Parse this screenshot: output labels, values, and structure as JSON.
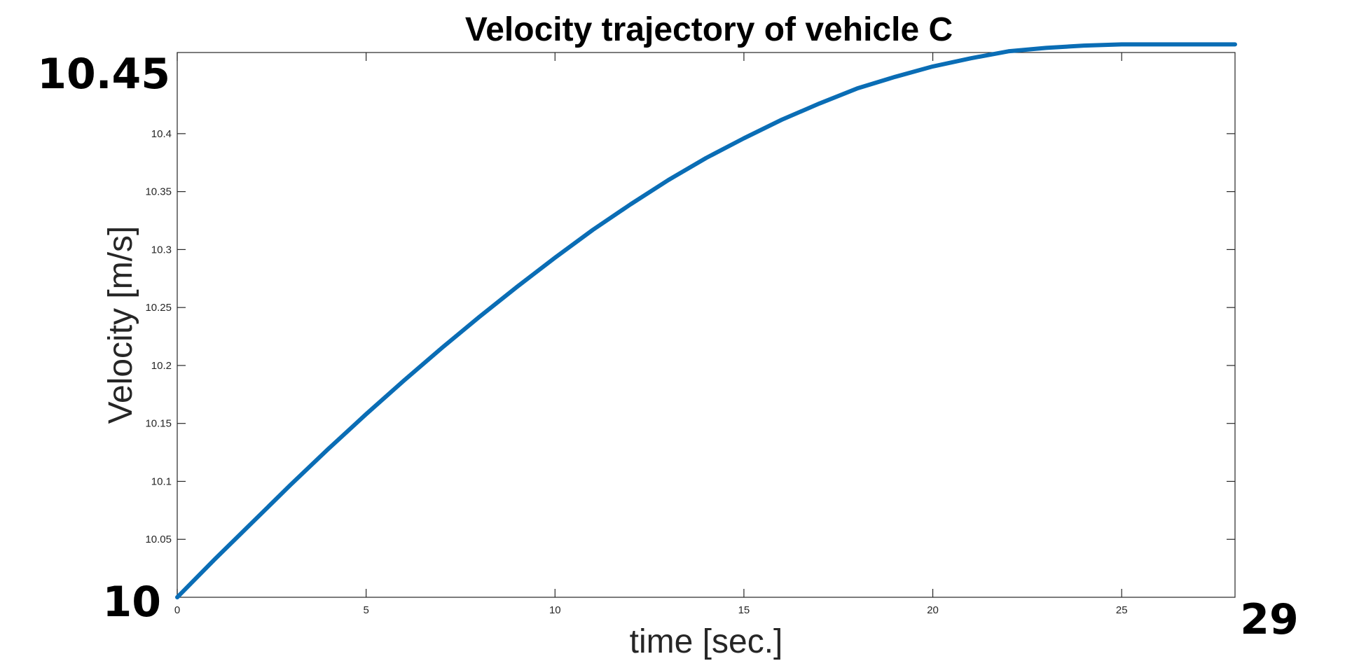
{
  "chart_data": {
    "type": "line",
    "title": "Velocity trajectory of vehicle C",
    "xlabel": "time [sec.]",
    "ylabel": "Velocity [m/s]",
    "xlim": [
      0,
      28
    ],
    "ylim": [
      10,
      10.47
    ],
    "x_ticks": [
      0,
      5,
      10,
      15,
      20,
      25
    ],
    "x_tick_labels": [
      "0",
      "5",
      "10",
      "15",
      "20",
      "25"
    ],
    "y_ticks": [
      10.05,
      10.1,
      10.15,
      10.2,
      10.25,
      10.3,
      10.35,
      10.4
    ],
    "y_tick_labels": [
      "10.05",
      "10.1",
      "10.15",
      "10.2",
      "10.25",
      "10.3",
      "10.35",
      "10.4"
    ],
    "grid": false,
    "series": [
      {
        "color": "#0a6db5",
        "x": [
          0,
          1,
          2,
          3,
          4,
          5,
          6,
          7,
          8,
          9,
          10,
          11,
          12,
          13,
          14,
          15,
          16,
          17,
          18,
          19,
          20,
          21,
          22,
          23,
          24,
          25,
          26,
          27,
          28
        ],
        "y": [
          10.0,
          10.033,
          10.065,
          10.097,
          10.128,
          10.158,
          10.187,
          10.215,
          10.242,
          10.268,
          10.293,
          10.317,
          10.339,
          10.36,
          10.379,
          10.396,
          10.412,
          10.426,
          10.439,
          10.449,
          10.458,
          10.465,
          10.471,
          10.474,
          10.476,
          10.477,
          10.477,
          10.477,
          10.477
        ]
      }
    ],
    "annotations": {
      "y_top": "10.45",
      "y_bottom": "10",
      "x_right": "29"
    }
  }
}
